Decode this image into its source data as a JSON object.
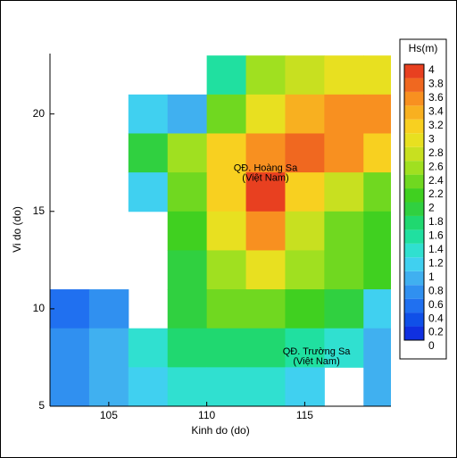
{
  "chart_data": {
    "type": "heatmap",
    "x_label": "Kinh do (do)",
    "y_label": "Vi do (do)",
    "xlim": [
      102,
      119.4
    ],
    "ylim": [
      5,
      23.1
    ],
    "xticks": [
      105,
      110,
      115
    ],
    "yticks": [
      5,
      10,
      15,
      20
    ],
    "x": [
      103,
      105,
      107,
      109,
      111,
      113,
      115,
      117,
      119
    ],
    "y": [
      22,
      20,
      18,
      16,
      14,
      12,
      10,
      8,
      6
    ],
    "z": [
      [
        null,
        null,
        null,
        null,
        1.4,
        2.4,
        2.6,
        2.8,
        2.8
      ],
      [
        null,
        null,
        1.0,
        0.8,
        2.2,
        2.8,
        3.2,
        3.4,
        3.4
      ],
      [
        null,
        null,
        1.8,
        2.4,
        3.0,
        3.4,
        3.6,
        3.4,
        3.0
      ],
      [
        null,
        null,
        1.0,
        2.2,
        3.0,
        3.8,
        3.0,
        2.6,
        2.2
      ],
      [
        null,
        null,
        null,
        2.0,
        2.8,
        3.4,
        2.6,
        2.2,
        2.0
      ],
      [
        null,
        null,
        null,
        1.8,
        2.4,
        2.8,
        2.4,
        2.2,
        2.0
      ],
      [
        0.4,
        0.6,
        null,
        1.8,
        2.2,
        2.2,
        2.0,
        1.8,
        1.0
      ],
      [
        0.6,
        0.8,
        1.2,
        1.6,
        1.6,
        1.6,
        1.4,
        1.2,
        0.8
      ],
      [
        0.6,
        0.8,
        1.0,
        1.2,
        1.2,
        1.2,
        1.0,
        null,
        0.8
      ]
    ],
    "colorbar_title": "Hs(m)",
    "levels": [
      0,
      0.2,
      0.4,
      0.6,
      0.8,
      1,
      1.2,
      1.4,
      1.6,
      1.8,
      2,
      2.2,
      2.4,
      2.6,
      2.8,
      3,
      3.2,
      3.4,
      3.6,
      3.8,
      4
    ],
    "colors": [
      "#1030e0",
      "#1050e8",
      "#2070f0",
      "#3090f0",
      "#40b0f0",
      "#40d0f0",
      "#30e0d0",
      "#20e0a0",
      "#20d870",
      "#30d040",
      "#40d020",
      "#70d820",
      "#a0e020",
      "#c8e020",
      "#e8e020",
      "#f8d020",
      "#f8b020",
      "#f89020",
      "#f06820",
      "#e84020"
    ],
    "annotations": [
      {
        "lines": [
          "QĐ. Hoàng Sa",
          "(Việt Nam)"
        ],
        "x": 113,
        "y": 17.2
      },
      {
        "lines": [
          "QĐ. Trường Sa",
          "(Việt Nam)"
        ],
        "x": 115.6,
        "y": 7.8
      }
    ]
  }
}
